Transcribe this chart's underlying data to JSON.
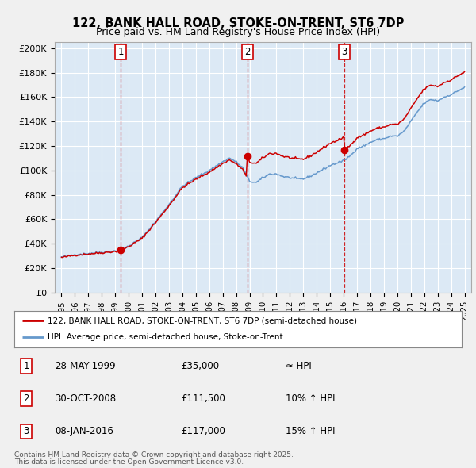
{
  "title": "122, BANK HALL ROAD, STOKE-ON-TRENT, ST6 7DP",
  "subtitle": "Price paid vs. HM Land Registry's House Price Index (HPI)",
  "background_color": "#f0f0f0",
  "plot_bg_color": "#dce9f5",
  "ylim": [
    0,
    205000
  ],
  "yticks": [
    0,
    20000,
    40000,
    60000,
    80000,
    100000,
    120000,
    140000,
    160000,
    180000,
    200000
  ],
  "ytick_labels": [
    "£0",
    "£20K",
    "£40K",
    "£60K",
    "£80K",
    "£100K",
    "£120K",
    "£140K",
    "£160K",
    "£180K",
    "£200K"
  ],
  "sale1_date": 1999.41,
  "sale1_price": 35000,
  "sale2_date": 2008.83,
  "sale2_price": 111500,
  "sale3_date": 2016.03,
  "sale3_price": 117000,
  "legend_line1": "122, BANK HALL ROAD, STOKE-ON-TRENT, ST6 7DP (semi-detached house)",
  "legend_line2": "HPI: Average price, semi-detached house, Stoke-on-Trent",
  "table_row1_num": "1",
  "table_row1_date": "28-MAY-1999",
  "table_row1_price": "£35,000",
  "table_row1_hpi": "≈ HPI",
  "table_row2_num": "2",
  "table_row2_date": "30-OCT-2008",
  "table_row2_price": "£111,500",
  "table_row2_hpi": "10% ↑ HPI",
  "table_row3_num": "3",
  "table_row3_date": "08-JAN-2016",
  "table_row3_price": "£117,000",
  "table_row3_hpi": "15% ↑ HPI",
  "footnote1": "Contains HM Land Registry data © Crown copyright and database right 2025.",
  "footnote2": "This data is licensed under the Open Government Licence v3.0.",
  "line_color_red": "#cc0000",
  "line_color_blue": "#6699cc",
  "vline_color": "#cc0000",
  "grid_color": "#ffffff",
  "border_color": "#aaaaaa",
  "hpi_anchor_times": [
    1995.0,
    1996.0,
    1997.0,
    1998.0,
    1999.0,
    1999.5,
    2000.0,
    2001.0,
    2002.0,
    2003.0,
    2004.0,
    2005.0,
    2006.0,
    2007.0,
    2007.5,
    2008.0,
    2008.5,
    2009.0,
    2009.5,
    2010.0,
    2010.5,
    2011.0,
    2011.5,
    2012.0,
    2012.5,
    2013.0,
    2013.5,
    2014.0,
    2014.5,
    2015.0,
    2015.5,
    2016.0,
    2016.5,
    2017.0,
    2017.5,
    2018.0,
    2018.5,
    2019.0,
    2019.5,
    2020.0,
    2020.5,
    2021.0,
    2021.5,
    2022.0,
    2022.5,
    2023.0,
    2023.5,
    2024.0,
    2024.5,
    2025.0
  ],
  "hpi_anchor_prices": [
    29000,
    31000,
    32000,
    33000,
    34000,
    35500,
    38000,
    45000,
    58000,
    72000,
    87000,
    94000,
    100000,
    107000,
    110000,
    107000,
    102000,
    91000,
    90000,
    94000,
    97000,
    97000,
    95000,
    94000,
    93000,
    93000,
    95000,
    98000,
    101000,
    104000,
    106000,
    108000,
    112000,
    118000,
    120000,
    123000,
    125000,
    126000,
    128000,
    128000,
    132000,
    140000,
    148000,
    155000,
    158000,
    157000,
    160000,
    162000,
    165000,
    168000
  ]
}
